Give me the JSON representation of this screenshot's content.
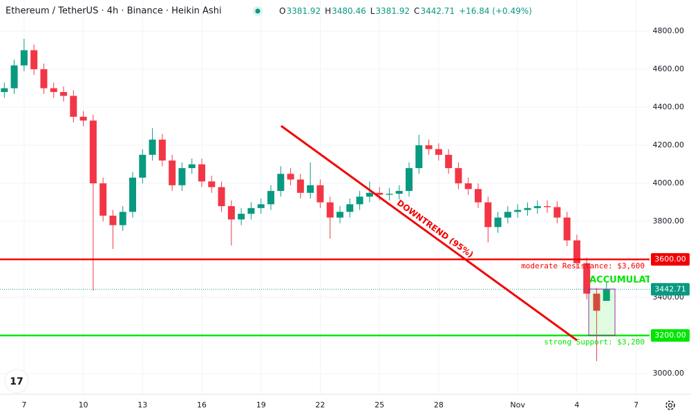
{
  "chart_data": {
    "type": "candlestick",
    "title": "Ethereum / TetherUS · 4h · Binance · Heikin Ashi",
    "ohlc_header": {
      "o_label": "O",
      "o": 3381.92,
      "h_label": "H",
      "h": 3480.46,
      "l_label": "L",
      "l": 3381.92,
      "c_label": "C",
      "c": 3442.71,
      "change": "+16.84 (+0.49%)"
    },
    "up_color": "#089981",
    "down_color": "#f23645",
    "x": [
      6,
      6.5,
      7,
      7.5,
      8,
      8.5,
      9,
      9.5,
      10,
      10.5,
      11,
      11.5,
      12,
      12.5,
      13,
      13.5,
      14,
      14.5,
      15,
      15.5,
      16,
      16.5,
      17,
      17.5,
      18,
      18.5,
      19,
      19.5,
      20,
      20.5,
      21,
      21.5,
      22,
      22.5,
      23,
      23.5,
      24,
      24.5,
      25,
      25.5,
      26,
      26.5,
      27,
      27.5,
      28,
      28.5,
      29,
      29.5,
      30,
      30.5,
      31,
      31.5,
      32,
      32.5,
      33,
      33.5,
      34,
      34.5,
      35,
      35.5,
      36,
      36.5
    ],
    "open": [
      4480,
      4500,
      4620,
      4700,
      4600,
      4500,
      4480,
      4460,
      4350,
      4330,
      4000,
      3830,
      3780,
      3850,
      4030,
      4150,
      4230,
      4120,
      3990,
      4080,
      4100,
      4010,
      3980,
      3880,
      3810,
      3840,
      3870,
      3890,
      3960,
      4050,
      4020,
      3950,
      3990,
      3900,
      3820,
      3850,
      3890,
      3930,
      3950,
      3940,
      3945,
      3960,
      4080,
      4200,
      4180,
      4150,
      4080,
      4000,
      3970,
      3900,
      3770,
      3820,
      3850,
      3860,
      3870,
      3880,
      3875,
      3820,
      3700,
      3580,
      3420,
      3381.92
    ],
    "high": [
      4530,
      4650,
      4760,
      4730,
      4630,
      4530,
      4510,
      4490,
      4380,
      4360,
      4030,
      3860,
      3880,
      4060,
      4180,
      4290,
      4260,
      4150,
      4110,
      4130,
      4130,
      4040,
      4010,
      3910,
      3870,
      3900,
      3920,
      3990,
      4090,
      4080,
      4050,
      4110,
      4020,
      3930,
      3880,
      3920,
      3960,
      4010,
      3980,
      3975,
      3990,
      4110,
      4255,
      4230,
      4210,
      4180,
      4110,
      4030,
      4000,
      3930,
      3850,
      3880,
      3890,
      3900,
      3910,
      3910,
      3905,
      3850,
      3730,
      3610,
      3450,
      3480.46
    ],
    "low": [
      4450,
      4470,
      4590,
      4570,
      4470,
      4450,
      4430,
      4320,
      4300,
      3436,
      3800,
      3655,
      3750,
      3820,
      4000,
      4120,
      4090,
      3960,
      3960,
      4050,
      3980,
      3950,
      3850,
      3673,
      3780,
      3810,
      3840,
      3860,
      3930,
      3990,
      3920,
      3920,
      3870,
      3710,
      3790,
      3820,
      3860,
      3900,
      3910,
      3910,
      3915,
      3930,
      4050,
      4150,
      4120,
      4050,
      3970,
      3940,
      3870,
      3690,
      3740,
      3790,
      3820,
      3830,
      3840,
      3845,
      3790,
      3670,
      3550,
      3390,
      3065,
      3381.92
    ],
    "close": [
      4500,
      4620,
      4700,
      4600,
      4500,
      4480,
      4460,
      4350,
      4330,
      4000,
      3830,
      3780,
      3850,
      4030,
      4150,
      4230,
      4120,
      3990,
      4080,
      4100,
      4010,
      3980,
      3880,
      3810,
      3840,
      3870,
      3890,
      3960,
      4050,
      4020,
      3950,
      3990,
      3900,
      3820,
      3850,
      3890,
      3930,
      3950,
      3940,
      3945,
      3960,
      4080,
      4200,
      4180,
      4150,
      4080,
      4000,
      3970,
      3900,
      3770,
      3820,
      3850,
      3860,
      3870,
      3880,
      3875,
      3820,
      3700,
      3580,
      3420,
      3330,
      3442.71
    ],
    "xlim": [
      5.78,
      38.68
    ],
    "ylim": [
      2891,
      4964
    ],
    "xticks": [
      7,
      10,
      13,
      16,
      19,
      22,
      25,
      28,
      {
        "value": 32,
        "label": "Nov"
      },
      {
        "value": 35,
        "label": "4"
      },
      {
        "value": 38,
        "label": "7"
      }
    ],
    "yticks": [
      {
        "value": 3000,
        "label": "3000.00"
      },
      {
        "value": 3200,
        "label": "3200.00"
      },
      {
        "value": 3400,
        "label": "3400.00"
      },
      {
        "value": 3600,
        "label": "3600.00"
      },
      {
        "value": 3800,
        "label": "3800.00"
      },
      {
        "value": 4000,
        "label": "4000.00"
      },
      {
        "value": 4200,
        "label": "4200.00"
      },
      {
        "value": 4400,
        "label": "4400.00"
      },
      {
        "value": 4600,
        "label": "4600.00"
      },
      {
        "value": 4800,
        "label": "4800.00"
      }
    ],
    "grid": true,
    "levels": [
      {
        "value": 3600,
        "label": "3600.00",
        "text": "moderate Resistance: $3,600",
        "color": "#f20000"
      },
      {
        "value": 3200,
        "label": "3200.00",
        "text": "strong Support: $3,200",
        "color": "#00e600"
      }
    ],
    "last_price": {
      "value": 3442.71,
      "color": "#089981"
    },
    "trendline": {
      "x": [
        20.02,
        35.0
      ],
      "y": [
        4302,
        3175
      ],
      "label": "DOWNTREND (95%)",
      "color": "#f20000"
    },
    "zone": {
      "x": [
        35.6,
        36.93
      ],
      "y": [
        3200,
        3444
      ],
      "label": "ACCUMULATION",
      "color": "#00e600"
    }
  }
}
